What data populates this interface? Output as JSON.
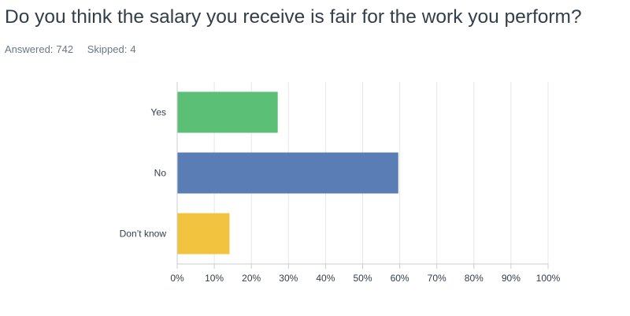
{
  "question": {
    "title": "Do you think the salary you receive is fair for the work you perform?"
  },
  "stats": {
    "answered_label": "Answered:",
    "answered_value": "742",
    "skipped_label": "Skipped:",
    "skipped_value": "4"
  },
  "chart_data": {
    "type": "bar",
    "orientation": "horizontal",
    "title": "Do you think the salary you receive is fair for the work you perform?",
    "categories": [
      "Yes",
      "No",
      "Don’t know"
    ],
    "values": [
      27,
      59.5,
      14
    ],
    "unit": "%",
    "xlim": [
      0,
      100
    ],
    "ticks": [
      "0%",
      "10%",
      "20%",
      "30%",
      "40%",
      "50%",
      "60%",
      "70%",
      "80%",
      "90%",
      "100%"
    ],
    "tick_values": [
      0,
      10,
      20,
      30,
      40,
      50,
      60,
      70,
      80,
      90,
      100
    ],
    "colors": [
      "#5bbf76",
      "#5a7db5",
      "#f1c33f"
    ],
    "grid": true,
    "legend": false
  }
}
